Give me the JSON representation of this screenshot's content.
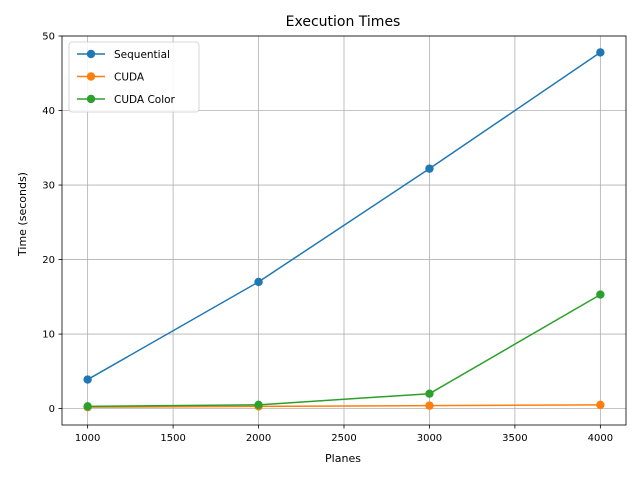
{
  "chart_data": {
    "type": "line",
    "title": "Execution Times",
    "xlabel": "Planes",
    "ylabel": "Time (seconds)",
    "x": [
      1000,
      2000,
      3000,
      4000
    ],
    "xlim": [
      850,
      4150
    ],
    "ylim": [
      -2.2,
      50
    ],
    "xticks": [
      1000,
      1500,
      2000,
      2500,
      3000,
      3500,
      4000
    ],
    "yticks": [
      0,
      10,
      20,
      30,
      40,
      50
    ],
    "grid": true,
    "legend_position": "top-left",
    "series": [
      {
        "name": "Sequential",
        "color": "#1f77b4",
        "values": [
          3.9,
          17.0,
          32.2,
          47.8
        ]
      },
      {
        "name": "CUDA",
        "color": "#ff7f0e",
        "values": [
          0.2,
          0.3,
          0.4,
          0.5
        ]
      },
      {
        "name": "CUDA Color",
        "color": "#2ca02c",
        "values": [
          0.3,
          0.5,
          2.0,
          15.3
        ]
      }
    ]
  }
}
